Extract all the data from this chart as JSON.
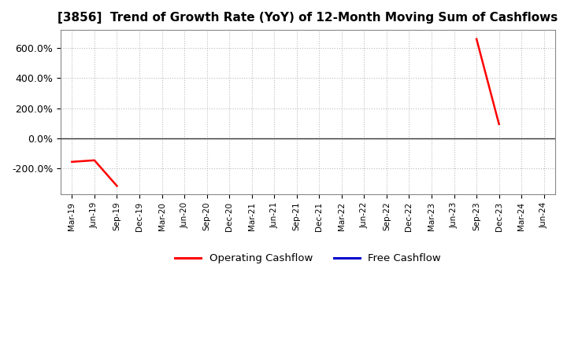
{
  "title": "[3856]  Trend of Growth Rate (YoY) of 12-Month Moving Sum of Cashflows",
  "title_fontsize": 11,
  "background_color": "#ffffff",
  "plot_bg_color": "#ffffff",
  "grid_color": "#aaaaaa",
  "ylim": [
    -370,
    720
  ],
  "yticks": [
    -200,
    0,
    200,
    400,
    600
  ],
  "ytick_labels": [
    "-200.0%",
    "0.0%",
    "200.0%",
    "400.0%",
    "600.0%"
  ],
  "operating_cashflow_color": "#ff0000",
  "free_cashflow_color": "#0000cd",
  "line_width": 1.8,
  "x_labels": [
    "Mar-19",
    "Jun-19",
    "Sep-19",
    "Dec-19",
    "Mar-20",
    "Jun-20",
    "Sep-20",
    "Dec-20",
    "Mar-21",
    "Jun-21",
    "Sep-21",
    "Dec-21",
    "Mar-22",
    "Jun-22",
    "Sep-22",
    "Dec-22",
    "Mar-23",
    "Jun-23",
    "Sep-23",
    "Dec-23",
    "Mar-24",
    "Jun-24"
  ],
  "op_segments": [
    [
      [
        0,
        1,
        2
      ],
      [
        -155,
        -145,
        -315
      ]
    ],
    [
      [
        18,
        19
      ],
      [
        660,
        95
      ]
    ]
  ],
  "fc_segments": [],
  "legend_labels": [
    "Operating Cashflow",
    "Free Cashflow"
  ]
}
